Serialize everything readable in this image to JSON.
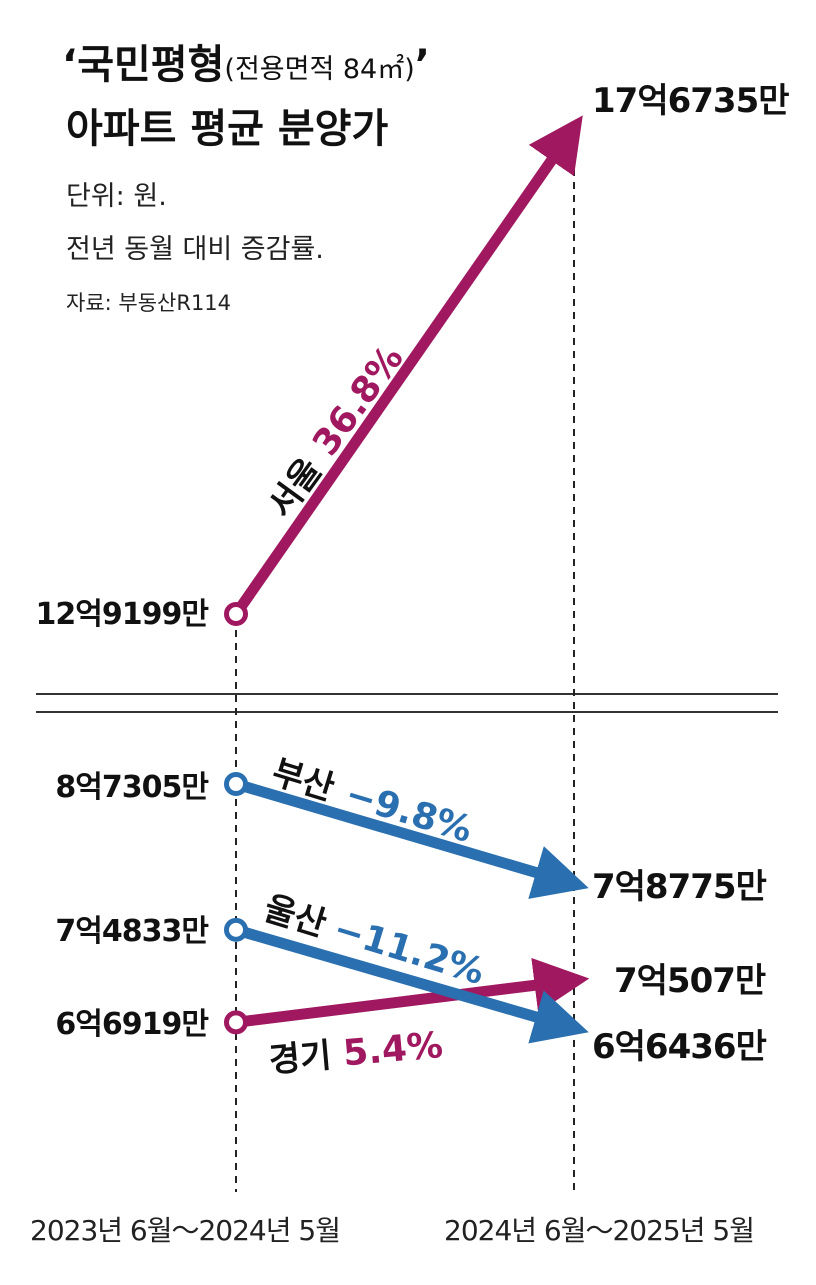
{
  "header": {
    "title_line1_main": "‘국민평형",
    "title_line1_paren": "(전용면적 84㎡)",
    "title_line1_close": "’",
    "title_line2": "아파트 평균 분양가",
    "unit_line": "단위: 원.",
    "note_line": "전년 동월 대비 증감률.",
    "source_line": "자료: 부동산R114"
  },
  "chart_data": {
    "type": "line",
    "title": "‘국민평형(전용면적 84㎡)’ 아파트 평균 분양가",
    "x": [
      "2023년 6월～2024년 5월",
      "2024년 6월～2025년 5월"
    ],
    "ylabel": "단위: 원.",
    "series": [
      {
        "name": "서울",
        "values": [
          1291990000,
          1767350000
        ],
        "start_label": "12억9199만",
        "end_label": "17억6735만",
        "change": "36.8%",
        "color": "#a0185f"
      },
      {
        "name": "부산",
        "values": [
          873050000,
          787750000
        ],
        "start_label": "8억7305만",
        "end_label": "7억8775만",
        "change": "−9.8%",
        "color": "#2a6fb0"
      },
      {
        "name": "울산",
        "values": [
          748330000,
          664360000
        ],
        "start_label": "7억4833만",
        "end_label": "6억6436만",
        "change": "−11.2%",
        "color": "#2a6fb0"
      },
      {
        "name": "경기",
        "values": [
          669190000,
          705070000
        ],
        "start_label": "6억6919만",
        "end_label": "7억507만",
        "change": "5.4%",
        "color": "#a0185f"
      }
    ]
  }
}
